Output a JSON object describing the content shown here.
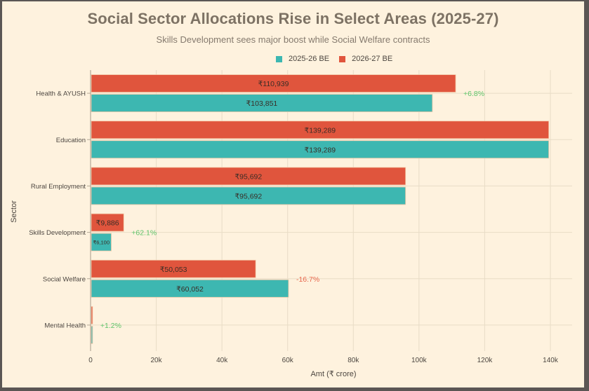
{
  "chart_data": {
    "type": "bar",
    "orientation": "horizontal",
    "title": "Social Sector Allocations Rise in Select Areas (2025-27)",
    "subtitle": "Skills Development sees major boost while Social Welfare contracts",
    "xlabel": "Amt (₹ crore)",
    "ylabel": "Sector",
    "xlim": [
      0,
      140000
    ],
    "x_ticks": [
      0,
      20000,
      40000,
      60000,
      80000,
      100000,
      120000,
      140000
    ],
    "x_tick_labels": [
      "0",
      "20k",
      "40k",
      "60k",
      "80k",
      "100k",
      "120k",
      "140k"
    ],
    "grid": true,
    "legend_position": "top-center",
    "categories": [
      "Health & AYUSH",
      "Education",
      "Rural Employment",
      "Skills Development",
      "Social Welfare",
      "Mental Health"
    ],
    "series": [
      {
        "name": "2025-26 BE",
        "color": "#3db7b1",
        "values": [
          103851,
          139289,
          95692,
          6100,
          60052,
          400
        ],
        "labels": [
          "₹103,851",
          "₹139,289",
          "₹95,692",
          "₹6,100",
          "₹60,052",
          ""
        ]
      },
      {
        "name": "2026-27 BE",
        "color": "#e0553d",
        "values": [
          110939,
          139289,
          95692,
          9886,
          50053,
          405
        ],
        "labels": [
          "₹110,939",
          "₹139,289",
          "₹95,692",
          "₹9,886",
          "₹50,053",
          ""
        ]
      }
    ],
    "annotations": [
      {
        "category": "Health & AYUSH",
        "text": "+6.8%",
        "color": "#5ec46a"
      },
      {
        "category": "Skills Development",
        "text": "+62.1%",
        "color": "#5ec46a"
      },
      {
        "category": "Social Welfare",
        "text": "-16.7%",
        "color": "#e8694f"
      },
      {
        "category": "Mental Health",
        "text": "+1.2%",
        "color": "#5ec46a"
      }
    ]
  },
  "colors": {
    "background": "#fef2de",
    "frame": "#5b5654",
    "title": "#7d7264",
    "gridline": "#e8dcc6",
    "axis_text": "#4c4640"
  }
}
